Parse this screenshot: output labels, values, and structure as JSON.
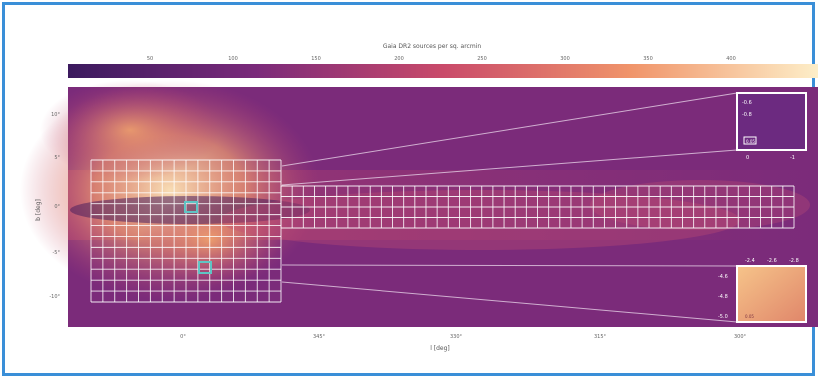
{
  "colorbar": {
    "title": "Gaia DR2 sources per sq. arcmin",
    "ticks": [
      "50",
      "100",
      "150",
      "200",
      "250",
      "300",
      "350",
      "400"
    ]
  },
  "axes": {
    "xlabel": "l [deg]",
    "ylabel": "b [deg]",
    "xticks": [
      "0°",
      "345°",
      "330°",
      "315°",
      "300°"
    ],
    "yticks": [
      "10°",
      "5°",
      "0°",
      "-5°",
      "-10°"
    ]
  },
  "inset_top": {
    "yticks": [
      "-0.6",
      "-0.8"
    ],
    "xticks": [
      "0",
      "-1"
    ],
    "label": "0.05"
  },
  "inset_bottom": {
    "xticks": [
      "-2.4",
      "-2.6",
      "-2.8"
    ],
    "yticks": [
      "-4.6",
      "-4.8",
      "-5.0"
    ],
    "label": "0.05"
  },
  "colors": {
    "frame": "#3a8fd8",
    "grid": "#ffffff",
    "highlight": "#5fc4c4"
  }
}
